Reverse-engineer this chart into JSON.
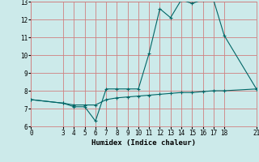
{
  "xlabel": "Humidex (Indice chaleur)",
  "bg_color": "#cceaea",
  "line_color": "#006666",
  "grid_color": "#d08080",
  "xlim": [
    0,
    21
  ],
  "ylim": [
    6,
    13
  ],
  "xticks": [
    0,
    3,
    4,
    5,
    6,
    7,
    8,
    9,
    10,
    11,
    12,
    13,
    14,
    15,
    16,
    17,
    18,
    21
  ],
  "yticks": [
    6,
    7,
    8,
    9,
    10,
    11,
    12,
    13
  ],
  "line1_x": [
    0,
    3,
    4,
    5,
    6,
    7,
    8,
    9,
    10,
    11,
    12,
    13,
    14,
    15,
    16,
    17,
    18,
    21
  ],
  "line1_y": [
    7.5,
    7.3,
    7.2,
    7.2,
    7.2,
    7.5,
    7.6,
    7.65,
    7.7,
    7.75,
    7.8,
    7.85,
    7.9,
    7.9,
    7.95,
    8.0,
    8.0,
    8.1
  ],
  "line2_x": [
    0,
    3,
    4,
    5,
    6,
    7,
    8,
    9,
    10,
    11,
    12,
    13,
    14,
    15,
    16,
    17,
    18,
    21
  ],
  "line2_y": [
    7.5,
    7.3,
    7.1,
    7.1,
    6.3,
    8.1,
    8.1,
    8.1,
    8.1,
    10.1,
    12.6,
    12.1,
    13.1,
    12.9,
    13.1,
    13.1,
    11.1,
    8.1
  ]
}
